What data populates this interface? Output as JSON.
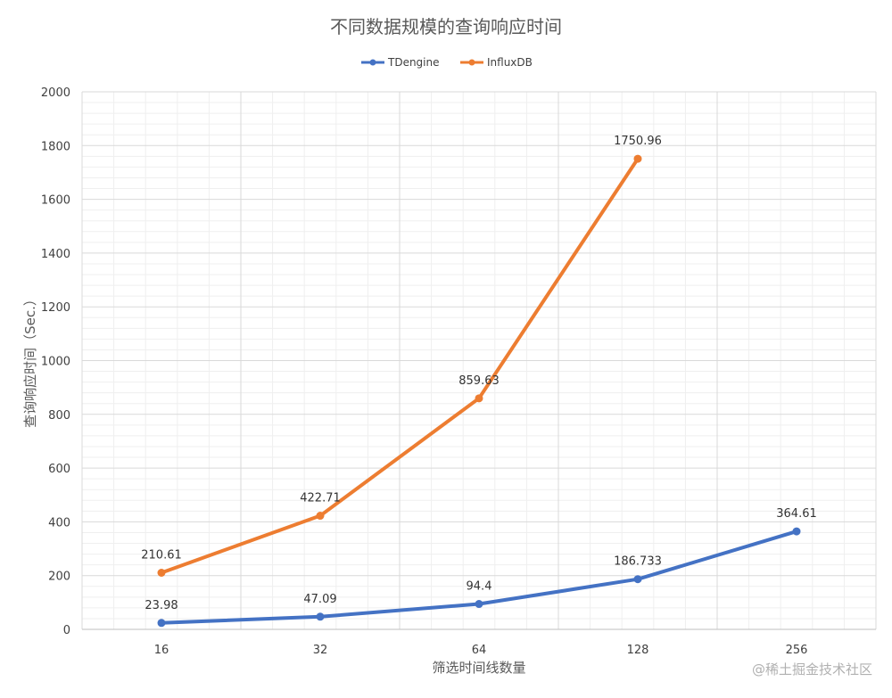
{
  "chart_data": {
    "type": "line",
    "title": "不同数据规模的查询响应时间",
    "xlabel": "筛选时间线数量",
    "ylabel": "查询响应时间（Sec.）",
    "categories": [
      "16",
      "32",
      "64",
      "128",
      "256"
    ],
    "ylim": [
      0,
      2000
    ],
    "yticks": [
      "0",
      "200",
      "400",
      "600",
      "800",
      "1000",
      "1200",
      "1400",
      "1600",
      "1800",
      "2000"
    ],
    "grid": true,
    "legend_position": "top",
    "series": [
      {
        "name": "TDengine",
        "color": "#4472C4",
        "values": [
          23.98,
          47.09,
          94.4,
          186.733,
          364.61
        ],
        "labels": [
          "23.98",
          "47.09",
          "94.4",
          "186.733",
          "364.61"
        ]
      },
      {
        "name": "InfluxDB",
        "color": "#ED7D31",
        "values": [
          210.61,
          422.71,
          859.63,
          1750.96,
          null
        ],
        "labels": [
          "210.61",
          "422.71",
          "859.63",
          "1750.96",
          null
        ]
      }
    ]
  },
  "watermark": "@稀土掘金技术社区"
}
